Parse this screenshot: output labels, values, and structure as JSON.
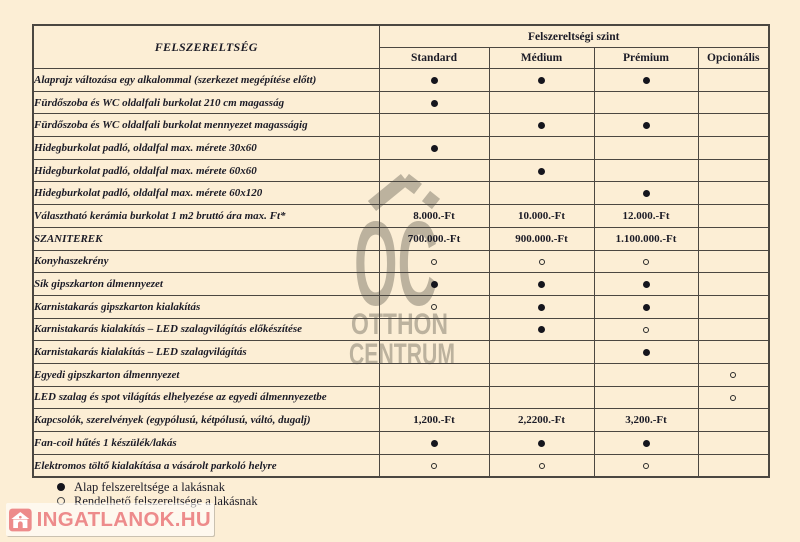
{
  "table": {
    "feature_header": "FELSZERELTSÉG",
    "level_header": "Felszereltségi szint",
    "columns": [
      "Standard",
      "Médium",
      "Prémium",
      "Opcionális"
    ],
    "rows": [
      {
        "feature": "Alaprajz változása egy alkalommal (szerkezet megépítése előtt)",
        "cells": [
          "●",
          "●",
          "●",
          ""
        ]
      },
      {
        "feature": "Fürdőszoba és WC oldalfali burkolat 210 cm magasság",
        "cells": [
          "●",
          "",
          "",
          ""
        ]
      },
      {
        "feature": "Fürdőszoba és WC oldalfali burkolat mennyezet magasságig",
        "cells": [
          "",
          "●",
          "●",
          ""
        ]
      },
      {
        "feature": "Hidegburkolat  padló, oldalfal max. mérete 30x60",
        "cells": [
          "●",
          "",
          "",
          ""
        ]
      },
      {
        "feature": "Hidegburkolat  padló, oldalfal  max. mérete 60x60",
        "cells": [
          "",
          "●",
          "",
          ""
        ]
      },
      {
        "feature": "Hidegburkolat  padló, oldalfal max. mérete 60x120",
        "cells": [
          "",
          "",
          "●",
          ""
        ]
      },
      {
        "feature": "Választható kerámia burkolat 1 m2 bruttó ára max. Ft*",
        "cells": [
          "8.000.-Ft",
          "10.000.-Ft",
          "12.000.-Ft",
          ""
        ]
      },
      {
        "feature": "SZANITEREK",
        "cells": [
          "700.000.-Ft",
          "900.000.-Ft",
          "1.100.000.-Ft",
          ""
        ]
      },
      {
        "feature": "Konyhaszekrény",
        "cells": [
          "○",
          "○",
          "○",
          ""
        ]
      },
      {
        "feature": "Sík gipszkarton álmennyezet",
        "cells": [
          "●",
          "●",
          "●",
          ""
        ]
      },
      {
        "feature": "Karnistakarás gipszkarton kialakítás",
        "cells": [
          "○",
          "●",
          "●",
          ""
        ]
      },
      {
        "feature": "Karnistakarás kialakítás – LED szalagvilágítás előkészítése",
        "cells": [
          "",
          "●",
          "○",
          ""
        ]
      },
      {
        "feature": "Karnistakarás kialakítás – LED szalagvilágítás",
        "cells": [
          "",
          "",
          "●",
          ""
        ]
      },
      {
        "feature": "Egyedi gipszkarton álmennyezet",
        "cells": [
          "",
          "",
          "",
          "○"
        ]
      },
      {
        "feature": "LED szalag és spot világítás elhelyezése az egyedi álmennyezetbe",
        "cells": [
          "",
          "",
          "",
          "○"
        ]
      },
      {
        "feature": "Kapcsolók, szerelvények (egypólusú, kétpólusú, váltó, dugalj)",
        "cells": [
          "1,200.-Ft",
          "2,2200.-Ft",
          "3,200.-Ft",
          ""
        ]
      },
      {
        "feature": "Fan-coil hűtés 1 készülék/lakás",
        "cells": [
          "●",
          "●",
          "●",
          ""
        ]
      },
      {
        "feature": "Elektromos töltő kialakítása a vásárolt parkoló helyre",
        "cells": [
          "○",
          "○",
          "○",
          ""
        ]
      }
    ]
  },
  "legend": {
    "items": [
      {
        "symbol": "●",
        "label": "Alap felszereltsége a lakásnak"
      },
      {
        "symbol": "○",
        "label": "Rendelhető felszereltsége a lakásnak"
      }
    ]
  },
  "watermarks": {
    "center_logo": {
      "monogram": "OC",
      "line1": "OTTHON",
      "line2": "CENTRUM"
    },
    "corner": {
      "text": "INGATLANOK.HU"
    }
  },
  "colors": {
    "background": "#fceed5",
    "border": "#4b4741",
    "text": "#1b1b26",
    "watermark_gray": "#7d7769",
    "watermark_red": "#ed8b8b"
  }
}
